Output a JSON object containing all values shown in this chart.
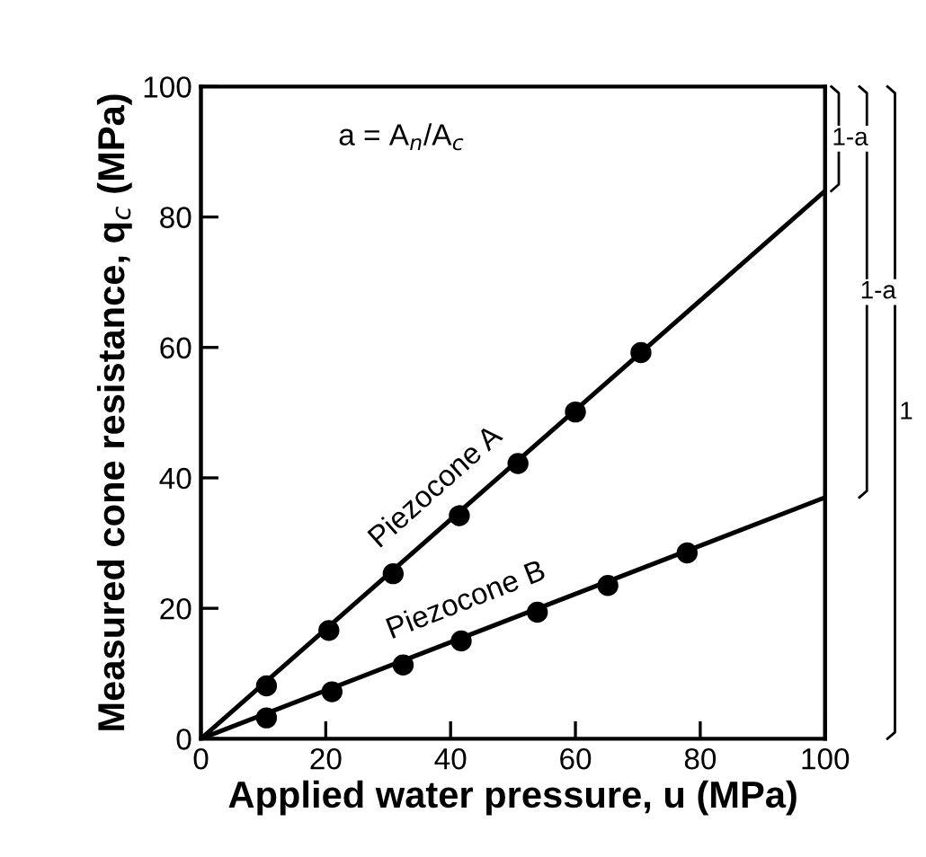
{
  "chart_data": {
    "type": "scatter",
    "xlabel": "Applied water pressure, u (MPa)",
    "ylabel": "Measured cone resistance, q$_{c}$ (MPa)",
    "xlim": [
      0,
      100
    ],
    "ylim": [
      0,
      100
    ],
    "xticks": [
      0,
      20,
      40,
      60,
      80,
      100
    ],
    "yticks": [
      0,
      20,
      40,
      60,
      80,
      100
    ],
    "grid": false,
    "legend": false,
    "marker": "circle",
    "series": [
      {
        "name": "Piezocone A",
        "color": "#000000",
        "x": [
          10.5,
          20.5,
          30.8,
          41.4,
          50.8,
          60,
          70.5
        ],
        "values": [
          8.1,
          16.6,
          25.3,
          34.2,
          42.2,
          50.1,
          59.2
        ]
      },
      {
        "name": "Piezocone B",
        "color": "#000000",
        "x": [
          10.5,
          21,
          32.4,
          41.7,
          53.9,
          65.2,
          77.9
        ],
        "values": [
          3.2,
          7.2,
          11.3,
          15,
          19.4,
          23.5,
          28.5
        ]
      },
      {
        "type": "line",
        "color": "#000000",
        "line_style": "solid",
        "marker": "none",
        "x": [
          0,
          100
        ],
        "values": [
          0,
          84
        ]
      },
      {
        "type": "line",
        "color": "#000000",
        "line_style": "solid",
        "marker": "none",
        "x": [
          0,
          100
        ],
        "values": [
          0,
          37
        ]
      }
    ],
    "annotations": [
      "a = A$_{n}$/A$_{c}$",
      "1-a",
      "1-a",
      "1"
    ]
  }
}
